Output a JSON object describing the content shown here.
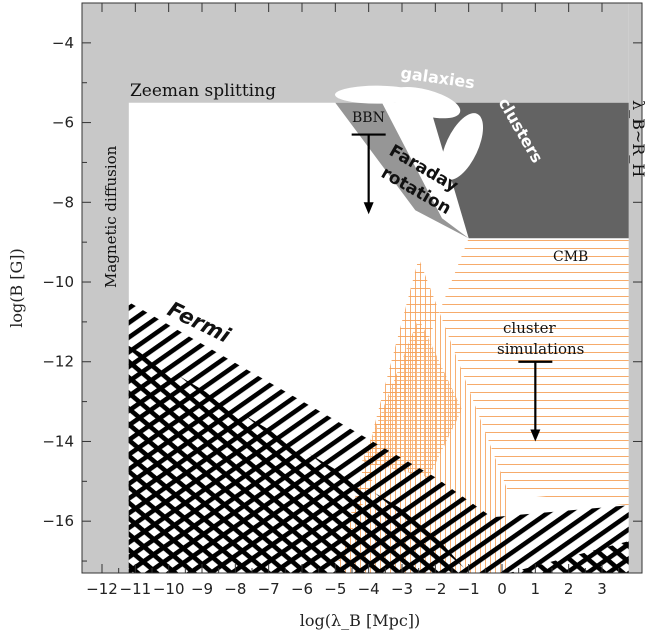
{
  "chart_data": {
    "type": "area",
    "xlabel": "log(λ_B [Mpc])",
    "ylabel": "log(B [G])",
    "xlim": [
      -12.6,
      4.2
    ],
    "ylim": [
      -17.3,
      -3.0
    ],
    "x_ticks": [
      -12,
      -11,
      -10,
      -9,
      -8,
      -7,
      -6,
      -5,
      -4,
      -3,
      -2,
      -1,
      0,
      1,
      2,
      3
    ],
    "y_ticks": [
      -4,
      -6,
      -8,
      -10,
      -12,
      -14,
      -16
    ],
    "regions": [
      {
        "name": "Zeeman splitting",
        "shape": [
          [
            -11.2,
            -5.5
          ],
          [
            3.8,
            -5.5
          ],
          [
            3.8,
            -3.0
          ],
          [
            -12.6,
            -3.0
          ],
          [
            -12.6,
            -17.3
          ],
          [
            -11.2,
            -17.3
          ]
        ]
      },
      {
        "name": "Magnetic diffusion",
        "shape": [
          [
            -12.6,
            -17.3
          ],
          [
            -11.2,
            -17.3
          ],
          [
            -11.2,
            -5.5
          ],
          [
            -12.6,
            -5.5
          ]
        ]
      },
      {
        "name": "λ_B~R_H",
        "shape": [
          [
            3.8,
            -3.0
          ],
          [
            4.2,
            -3.0
          ],
          [
            4.2,
            -17.3
          ],
          [
            3.8,
            -17.3
          ]
        ]
      },
      {
        "name": "Faraday rotation",
        "shape": [
          [
            -5.0,
            -5.5
          ],
          [
            -3.6,
            -5.5
          ],
          [
            -1.8,
            -8.4
          ],
          [
            -1.0,
            -8.9
          ],
          [
            -2.6,
            -8.2
          ]
        ]
      },
      {
        "name": "CMB",
        "shape": [
          [
            -1.0,
            -8.9
          ],
          [
            3.8,
            -8.9
          ],
          [
            3.8,
            -5.5
          ],
          [
            -2.2,
            -5.5
          ]
        ]
      },
      {
        "name": "Fermi",
        "shape": [
          [
            -11.2,
            -10.5
          ],
          [
            -2.0,
            -14.9
          ],
          [
            -0.3,
            -15.9
          ],
          [
            3.8,
            -15.6
          ],
          [
            3.8,
            -17.3
          ],
          [
            -11.2,
            -17.3
          ]
        ]
      },
      {
        "name": "cluster simulations",
        "shape": [
          [
            -5.0,
            -17.3
          ],
          [
            -2.5,
            -9.4
          ],
          [
            0.2,
            -15.3
          ],
          [
            3.8,
            -15.6
          ],
          [
            3.8,
            -8.9
          ],
          [
            -1.0,
            -8.9
          ]
        ]
      }
    ],
    "labels": {
      "zeeman": "Zeeman splitting",
      "galaxies": "galaxies",
      "clusters": "clusters",
      "bbn": "BBN",
      "faraday_line1": "Faraday",
      "faraday_line2": "rotation",
      "diffusion": "Magnetic diffusion",
      "horizon": "λ_B~R_H",
      "cmb": "CMB",
      "fermi": "Fermi",
      "cluster_sim_line1": "cluster",
      "cluster_sim_line2": "simulations"
    },
    "upper_limits": [
      {
        "label": "BBN",
        "x": -4.0,
        "y_from": -6.3,
        "y_to": -8.3
      },
      {
        "label": "cluster simulations",
        "x": 1.0,
        "y_from": -12.0,
        "y_to": -14.0
      }
    ],
    "colors": {
      "excluded_light": "#c8c8c8",
      "excluded_mid": "#969696",
      "excluded_dark": "#636363",
      "fermi_hatch": "#000000",
      "simulation_hatch": "#f5a25a",
      "galaxy_ellipse": "#ffffff"
    },
    "grid": false
  }
}
